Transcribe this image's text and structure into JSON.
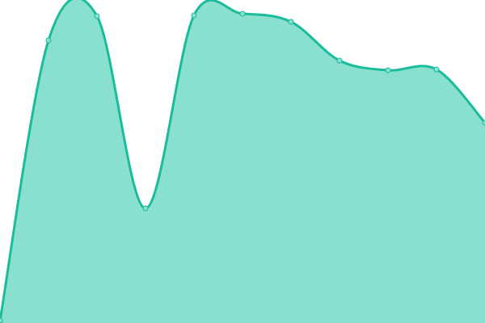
{
  "chart_data": {
    "type": "area",
    "x": [
      0,
      1,
      2,
      3,
      4,
      5,
      6,
      7,
      8,
      9,
      10
    ],
    "values": [
      3,
      350,
      380,
      142,
      381,
      383,
      373,
      325,
      313,
      314,
      248
    ],
    "ylim": [
      0,
      400
    ],
    "grid": false,
    "legend": "none",
    "colors": {
      "line": "#1abc9c",
      "fill": "#89e0cf",
      "point_fill": "#89e0cf"
    }
  }
}
